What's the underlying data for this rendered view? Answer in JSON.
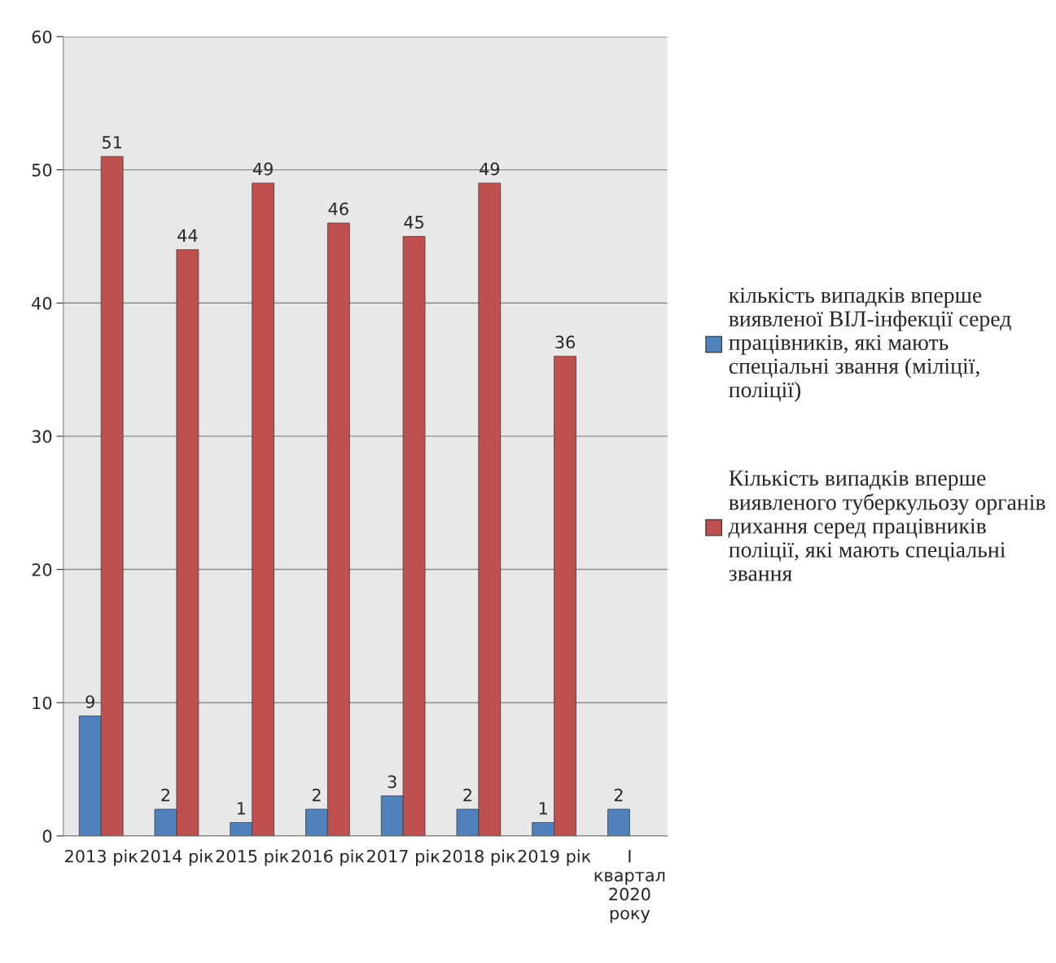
{
  "chart_data": {
    "type": "bar",
    "categories": [
      "2013 рік",
      "2014 рік",
      "2015 рік",
      "2016 рік",
      "2017 рік",
      "2018 рік",
      "2019 рік",
      "I квартал 2020 року"
    ],
    "series": [
      {
        "name": "кількість випадків вперше виявленої ВІЛ-інфекції серед працівників, які мають спеціальні звання (міліції, поліції)",
        "color": "#4f81bd",
        "values": [
          9,
          2,
          1,
          2,
          3,
          2,
          1,
          2
        ]
      },
      {
        "name": "Кількість випадків вперше виявленого туберкульозу органів дихання серед працівників поліції, які мають спеціальні звання",
        "color": "#c0504d",
        "values": [
          51,
          44,
          49,
          46,
          45,
          49,
          36,
          null
        ]
      }
    ],
    "ylim": [
      0,
      60
    ],
    "yticks": [
      0,
      10,
      20,
      30,
      40,
      50,
      60
    ],
    "grid": "y",
    "legend": "right",
    "data_labels": true
  }
}
